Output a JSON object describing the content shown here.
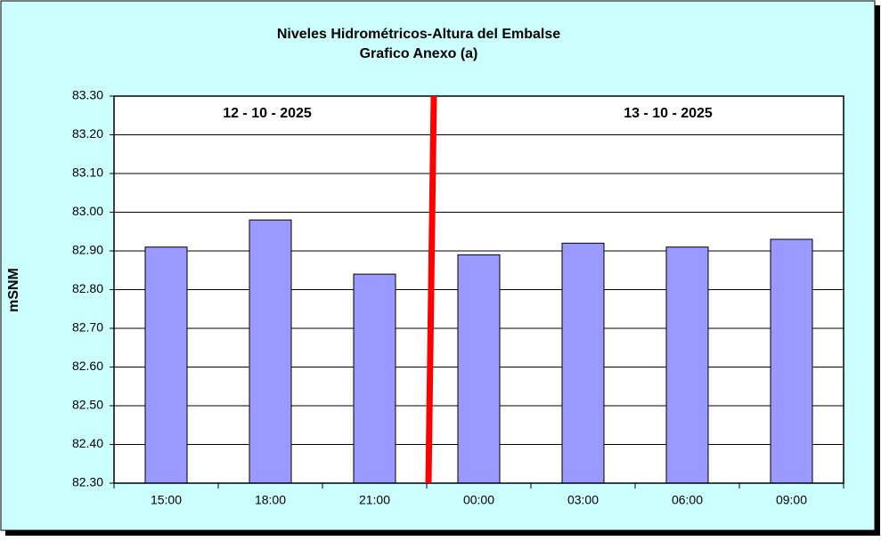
{
  "chart_data": {
    "type": "bar",
    "title": "Niveles Hidrométricos-Altura del Embalse",
    "subtitle": "Grafico Anexo (a)",
    "y_label": "mSNM",
    "annotations": [
      "12 - 10 - 2025",
      "13 - 10 - 2025"
    ],
    "categories": [
      "15:00",
      "18:00",
      "21:00",
      "00:00",
      "03:00",
      "06:00",
      "09:00"
    ],
    "values": [
      82.91,
      82.98,
      82.84,
      82.89,
      82.92,
      82.91,
      82.93
    ],
    "color": "#9999ff",
    "ylim": [
      82.3,
      83.3
    ],
    "yticks": [
      {
        "value": 82.3,
        "label": "82.30"
      },
      {
        "value": 82.4,
        "label": "82.40"
      },
      {
        "value": 82.5,
        "label": "82.50"
      },
      {
        "value": 82.6,
        "label": "82.60"
      },
      {
        "value": 82.7,
        "label": "82.70"
      },
      {
        "value": 82.8,
        "label": "82.80"
      },
      {
        "value": 82.9,
        "label": "82.90"
      },
      {
        "value": 83.0,
        "label": "83.00"
      },
      {
        "value": 83.1,
        "label": "83.10"
      },
      {
        "value": 83.2,
        "label": "83.20"
      },
      {
        "value": 83.3,
        "label": "83.30"
      }
    ],
    "grid": true
  }
}
